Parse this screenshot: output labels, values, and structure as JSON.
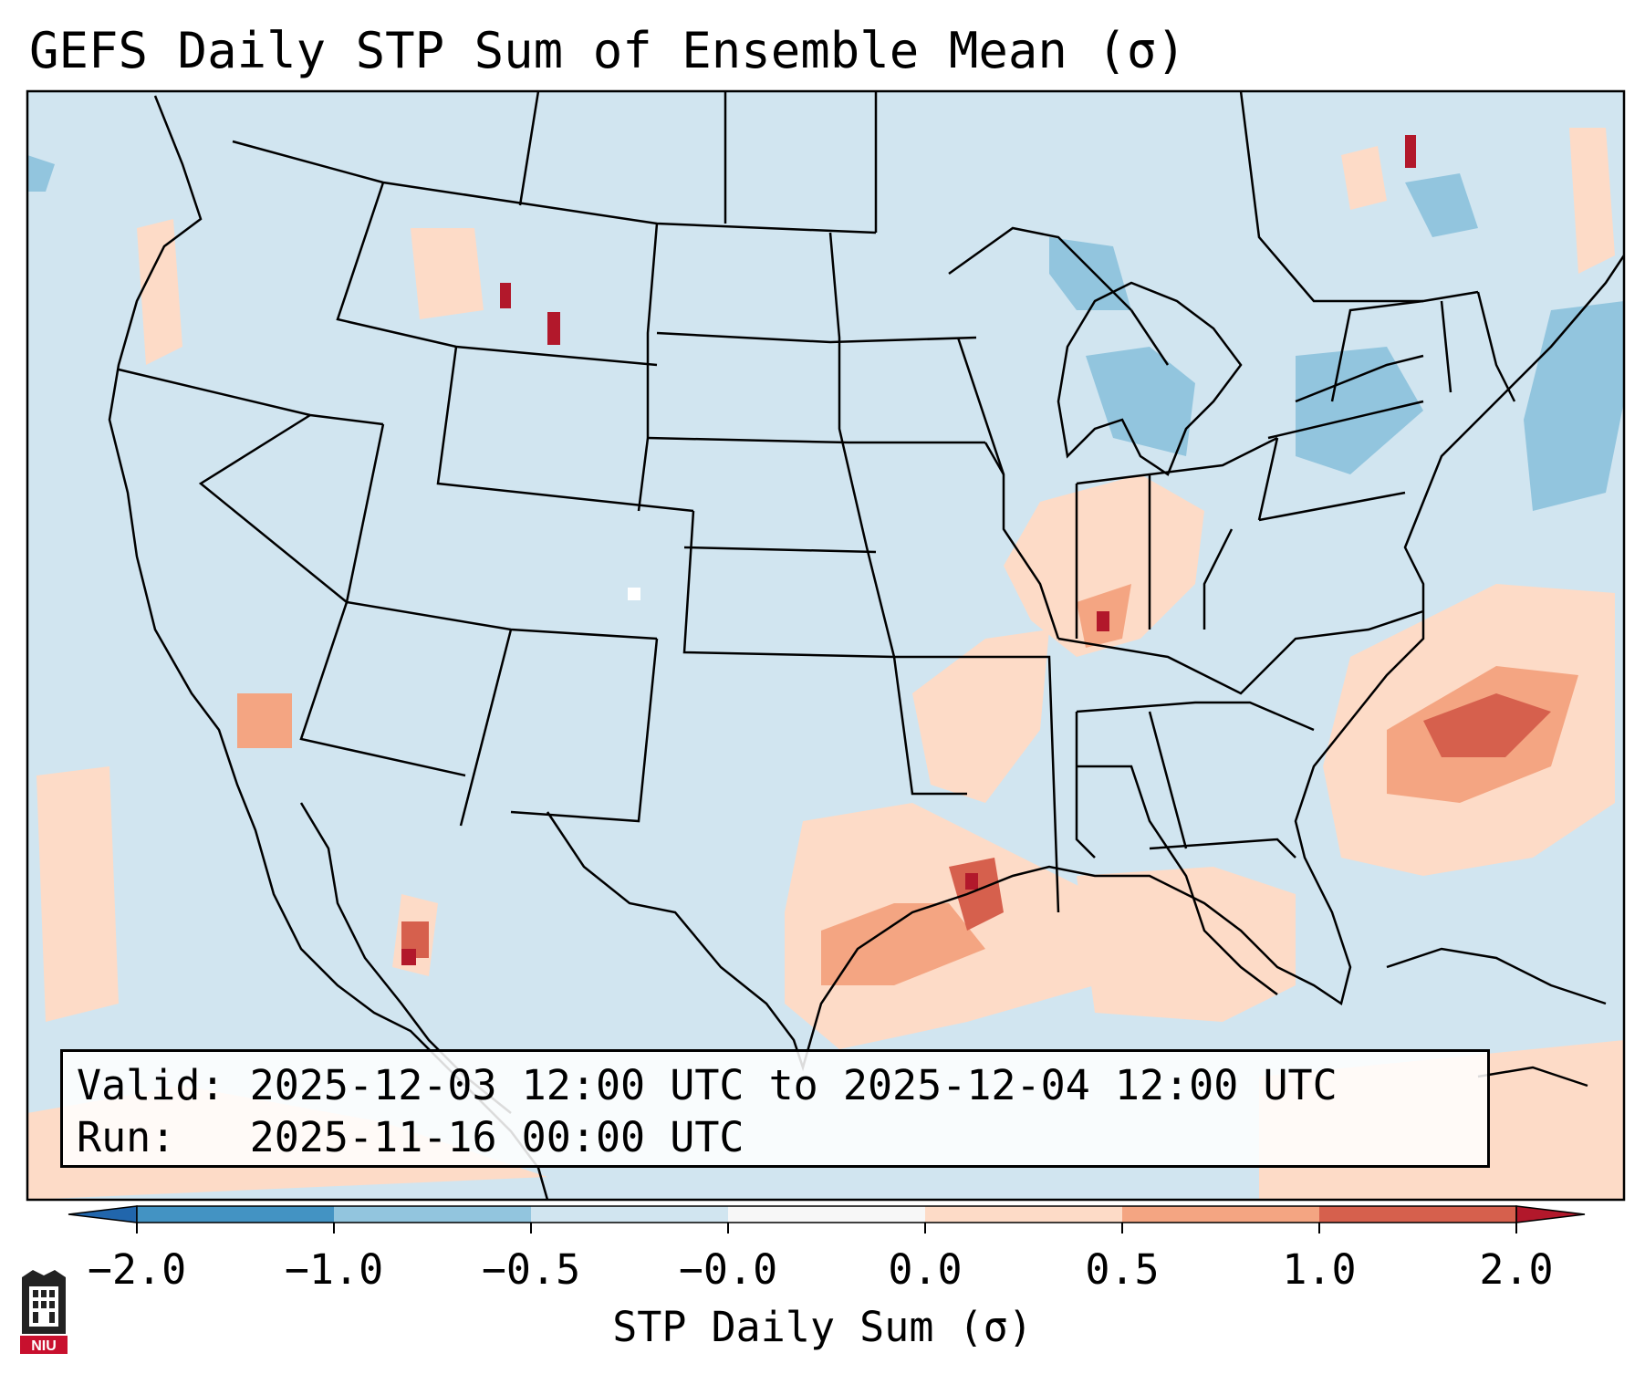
{
  "title": "GEFS Daily STP Sum of Ensemble Mean (σ)",
  "info": {
    "valid_label": "Valid:",
    "valid_value": "2025-12-03 12:00 UTC to 2025-12-04 12:00 UTC",
    "run_label": "Run:",
    "run_value": "2025-11-16 00:00 UTC"
  },
  "colorbar": {
    "label": "STP Daily Sum (σ)",
    "ticks": [
      "−2.0",
      "−1.0",
      "−0.5",
      "−0.0",
      "0.0",
      "0.5",
      "1.0",
      "2.0"
    ],
    "colors": [
      "#4393c3",
      "#92c5de",
      "#d1e5f0",
      "#f7f7f7",
      "#fddbc7",
      "#f4a582",
      "#d6604d"
    ],
    "under_color": "#2166ac",
    "over_color": "#b2182b"
  },
  "logo": {
    "text": "NIU",
    "icon": "university-shield-icon",
    "color": "#c8102e"
  },
  "map": {
    "background": "#d1e5f0",
    "region": "Contiguous United States"
  }
}
